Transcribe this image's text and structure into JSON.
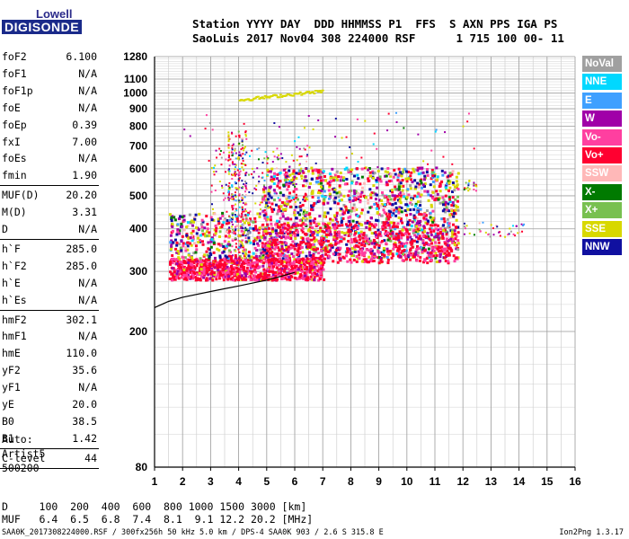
{
  "logo": {
    "top": "Lowell",
    "bottom": "DIGISONDE"
  },
  "header": {
    "line1": "Station YYYY DAY  DDD HHMMSS P1  FFS  S AXN PPS IGA PS",
    "line2": "SaoLuis 2017 Nov04 308 224000 RSF      1 715 100 00- 11"
  },
  "params_group1": [
    {
      "label": "foF2",
      "value": "6.100"
    },
    {
      "label": "foF1",
      "value": "N/A"
    },
    {
      "label": "foF1p",
      "value": "N/A"
    },
    {
      "label": "foE",
      "value": "N/A"
    },
    {
      "label": "foEp",
      "value": "0.39"
    },
    {
      "label": "fxI",
      "value": "7.00"
    },
    {
      "label": "foEs",
      "value": "N/A"
    },
    {
      "label": "fmin",
      "value": "1.90"
    }
  ],
  "params_group2": [
    {
      "label": "MUF(D)",
      "value": "20.20"
    },
    {
      "label": "M(D)",
      "value": "3.31"
    },
    {
      "label": "D",
      "value": "N/A"
    }
  ],
  "params_group3": [
    {
      "label": "h`F",
      "value": "285.0"
    },
    {
      "label": "h`F2",
      "value": "285.0"
    },
    {
      "label": "h`E",
      "value": "N/A"
    },
    {
      "label": "h`Es",
      "value": "N/A"
    }
  ],
  "params_group4": [
    {
      "label": "hmF2",
      "value": "302.1"
    },
    {
      "label": "hmF1",
      "value": "N/A"
    },
    {
      "label": "hmE",
      "value": "110.0"
    },
    {
      "label": "yF2",
      "value": "35.6"
    },
    {
      "label": "yF1",
      "value": "N/A"
    },
    {
      "label": "yE",
      "value": "20.0"
    },
    {
      "label": "B0",
      "value": "38.5"
    },
    {
      "label": "B1",
      "value": "1.42"
    }
  ],
  "clevel": {
    "label": "C-level",
    "value": "44"
  },
  "autoscale": {
    "line1": "Auto:",
    "line2": "Artist5",
    "line3": "500200"
  },
  "muf_table": {
    "row1": "D     100  200  400  600  800 1000 1500 3000 [km]",
    "row2": "MUF   6.4  6.5  6.8  7.4  8.1  9.1 12.2 20.2 [MHz]"
  },
  "footer": {
    "left": "SAA0K_2017308224000.RSF / 300fx256h 50 kHz 5.0 km / DPS-4 SAA0K 903 / 2.6 S 315.8 E",
    "right": "Ion2Png 1.3.17"
  },
  "legend": [
    {
      "label": "NoVal",
      "color": "#a0a0a0"
    },
    {
      "label": "NNE",
      "color": "#00d8ff"
    },
    {
      "label": "E",
      "color": "#3fa0ff"
    },
    {
      "label": "W",
      "color": "#a000a8"
    },
    {
      "label": "Vo-",
      "color": "#ff3fa0"
    },
    {
      "label": "Vo+",
      "color": "#ff0030"
    },
    {
      "label": "SSW",
      "color": "#ffb8b8"
    },
    {
      "label": "X-",
      "color": "#007a00"
    },
    {
      "label": "X+",
      "color": "#78c050"
    },
    {
      "label": "SSE",
      "color": "#d8d800"
    },
    {
      "label": "NNW",
      "color": "#1010a0"
    }
  ],
  "chart_data": {
    "type": "scatter",
    "title": "",
    "xlabel": "",
    "ylabel": "",
    "xlim": [
      1,
      16
    ],
    "ylim": [
      80,
      1280
    ],
    "y_scale": "log",
    "x_ticks": [
      "1",
      "2",
      "3",
      "4",
      "5",
      "6",
      "7",
      "8",
      "9",
      "10",
      "11",
      "12",
      "13",
      "14",
      "15",
      "16"
    ],
    "y_ticks": [
      "80",
      "200",
      "300",
      "400",
      "500",
      "600",
      "700",
      "800",
      "900",
      "1000",
      "1100",
      "1280"
    ],
    "grid": true,
    "trace_clusters": [
      {
        "name": "Vo+",
        "x_range": [
          1.5,
          7.0
        ],
        "h_range": [
          285,
          330
        ]
      },
      {
        "name": "Vo+",
        "x_range": [
          5.0,
          12.0
        ],
        "h_range": [
          320,
          560
        ]
      },
      {
        "name": "SSE",
        "x_range": [
          4.0,
          7.0
        ],
        "h_range": [
          960,
          1030
        ]
      }
    ],
    "profile_curve": {
      "x": [
        1.0,
        1.5,
        2.0,
        3.0,
        4.0,
        5.0,
        5.5,
        6.0
      ],
      "y": [
        235,
        245,
        252,
        262,
        272,
        283,
        290,
        298
      ]
    }
  }
}
